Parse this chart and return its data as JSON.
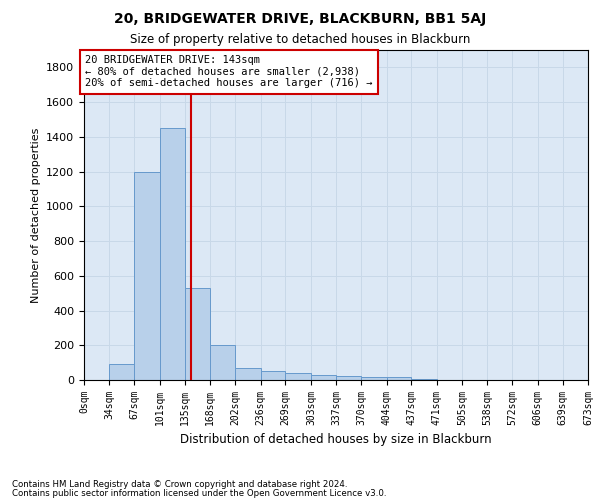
{
  "title": "20, BRIDGEWATER DRIVE, BLACKBURN, BB1 5AJ",
  "subtitle": "Size of property relative to detached houses in Blackburn",
  "xlabel": "Distribution of detached houses by size in Blackburn",
  "ylabel": "Number of detached properties",
  "footnote1": "Contains HM Land Registry data © Crown copyright and database right 2024.",
  "footnote2": "Contains public sector information licensed under the Open Government Licence v3.0.",
  "property_size": 143,
  "annotation_line1": "20 BRIDGEWATER DRIVE: 143sqm",
  "annotation_line2": "← 80% of detached houses are smaller (2,938)",
  "annotation_line3": "20% of semi-detached houses are larger (716) →",
  "bar_edges": [
    0,
    34,
    67,
    101,
    135,
    168,
    202,
    236,
    269,
    303,
    337,
    370,
    404,
    437,
    471,
    505,
    538,
    572,
    606,
    639,
    673
  ],
  "bar_heights": [
    0,
    90,
    1200,
    1450,
    530,
    200,
    70,
    50,
    40,
    30,
    25,
    20,
    15,
    5,
    0,
    0,
    0,
    0,
    0,
    0
  ],
  "bar_color": "#b8d0ea",
  "bar_edgecolor": "#6699cc",
  "vline_color": "#cc0000",
  "annotation_box_color": "#cc0000",
  "grid_color": "#c8d8e8",
  "background_color": "#dce8f5",
  "ylim": [
    0,
    1900
  ],
  "xlim": [
    0,
    673
  ],
  "yticks": [
    0,
    200,
    400,
    600,
    800,
    1000,
    1200,
    1400,
    1600,
    1800
  ]
}
